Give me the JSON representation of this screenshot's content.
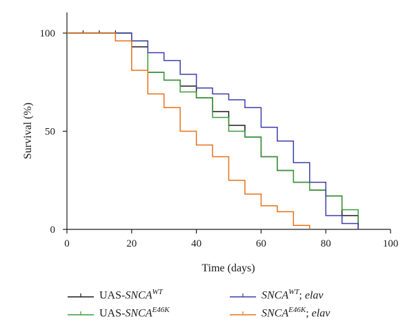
{
  "chart_data": {
    "type": "line",
    "step": true,
    "xlabel": "Time (days)",
    "ylabel": "Survival (%)",
    "xlim": [
      0,
      100
    ],
    "ylim": [
      0,
      100
    ],
    "xticks": [
      "0",
      "20",
      "40",
      "60",
      "80",
      "100"
    ],
    "yticks": [
      "0",
      "50",
      "100"
    ],
    "grid": false,
    "legend_position": "bottom",
    "series": [
      {
        "name": "UAS-SNCA^WT",
        "legend": {
          "prefix": "UAS-",
          "gene": "SNCA",
          "sup": "WT",
          "suffix": ""
        },
        "color": "#1a1a1a",
        "censor_marks_x": [
          5,
          10,
          15
        ],
        "x": [
          0,
          20,
          25,
          30,
          35,
          40,
          45,
          50,
          55,
          60,
          65,
          70,
          75,
          80,
          85,
          90
        ],
        "y": [
          100,
          93,
          80,
          76,
          73,
          67,
          60,
          53,
          47,
          37,
          30,
          24,
          20,
          17,
          7,
          0
        ]
      },
      {
        "name": "UAS-SNCA^E46K",
        "legend": {
          "prefix": "UAS-",
          "gene": "SNCA",
          "sup": "E46K",
          "suffix": ""
        },
        "color": "#3a9b3a",
        "censor_marks_x": [],
        "x": [
          0,
          20,
          25,
          30,
          35,
          40,
          45,
          50,
          55,
          60,
          65,
          70,
          75,
          80,
          85,
          90
        ],
        "y": [
          100,
          96,
          80,
          76,
          70,
          67,
          57,
          50,
          47,
          37,
          30,
          24,
          20,
          17,
          10,
          0
        ]
      },
      {
        "name": "SNCA^WT; elav",
        "legend": {
          "prefix": "",
          "gene": "SNCA",
          "sup": "WT",
          "suffix": "; elav"
        },
        "color": "#3c3ca8",
        "censor_marks_x": [],
        "x": [
          0,
          20,
          25,
          30,
          35,
          40,
          45,
          50,
          55,
          60,
          65,
          70,
          75,
          80,
          85,
          90
        ],
        "y": [
          100,
          96,
          90,
          86,
          79,
          72,
          69,
          66,
          62,
          52,
          45,
          34,
          24,
          7,
          3,
          0
        ]
      },
      {
        "name": "SNCA^E46K; elav",
        "legend": {
          "prefix": "",
          "gene": "SNCA",
          "sup": "E46K",
          "suffix": "; elav"
        },
        "color": "#e8701a",
        "censor_marks_x": [],
        "x": [
          0,
          15,
          20,
          25,
          30,
          35,
          40,
          45,
          50,
          55,
          60,
          65,
          70,
          75
        ],
        "y": [
          100,
          96,
          81,
          69,
          62,
          50,
          43,
          37,
          25,
          18,
          12,
          9,
          2,
          0
        ]
      }
    ]
  }
}
